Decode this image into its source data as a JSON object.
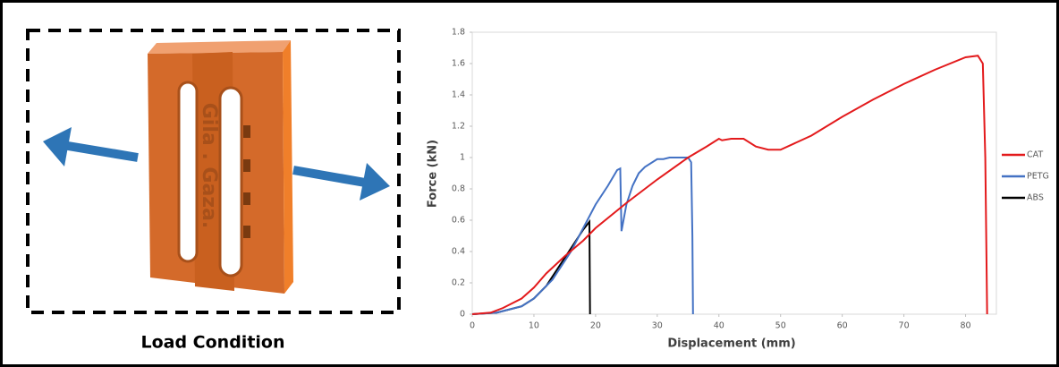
{
  "panel": {
    "caption": "Load Condition",
    "part_engraving": "Gila . Gaza."
  },
  "chart_data": {
    "type": "line",
    "x_label": "Displacement (mm)",
    "y_label": "Force (kN)",
    "xlim": [
      0,
      85
    ],
    "xticks": [
      0,
      10,
      20,
      30,
      40,
      50,
      60,
      70,
      80
    ],
    "ylim": [
      0,
      1.8
    ],
    "yticks": [
      0,
      0.2,
      0.4,
      0.6,
      0.8,
      1,
      1.2,
      1.4,
      1.6,
      1.8
    ],
    "grid": false,
    "legend": "right",
    "series": [
      {
        "name": "CAT",
        "color": "#e31a1c",
        "x": [
          0,
          3,
          5,
          8,
          10,
          12,
          15,
          18,
          20,
          25,
          30,
          35,
          38,
          40,
          40.5,
          42,
          44,
          46,
          48,
          50,
          55,
          60,
          65,
          70,
          75,
          80,
          82,
          82.8,
          83.2,
          83.5
        ],
        "values": [
          0,
          0.01,
          0.04,
          0.1,
          0.17,
          0.26,
          0.37,
          0.47,
          0.55,
          0.71,
          0.86,
          1.0,
          1.07,
          1.12,
          1.11,
          1.12,
          1.12,
          1.07,
          1.05,
          1.05,
          1.14,
          1.26,
          1.37,
          1.47,
          1.56,
          1.64,
          1.65,
          1.6,
          1.0,
          0
        ]
      },
      {
        "name": "PETG",
        "color": "#4472c4",
        "x": [
          0,
          4,
          8,
          10,
          13,
          16,
          18,
          20,
          22,
          23.5,
          24,
          24.2,
          25,
          26,
          27,
          28,
          30,
          31,
          32,
          34,
          35,
          35.5,
          35.7,
          35.8
        ],
        "values": [
          0,
          0.01,
          0.05,
          0.1,
          0.22,
          0.4,
          0.55,
          0.7,
          0.82,
          0.92,
          0.93,
          0.53,
          0.7,
          0.82,
          0.9,
          0.94,
          0.99,
          0.99,
          1.0,
          1.0,
          1.0,
          0.97,
          0.5,
          0
        ]
      },
      {
        "name": "ABS",
        "color": "#000000",
        "x": [
          0,
          4,
          8,
          10,
          12,
          14,
          16,
          18,
          19,
          19.1
        ],
        "values": [
          0,
          0.01,
          0.05,
          0.1,
          0.18,
          0.3,
          0.42,
          0.54,
          0.59,
          0
        ]
      }
    ]
  }
}
